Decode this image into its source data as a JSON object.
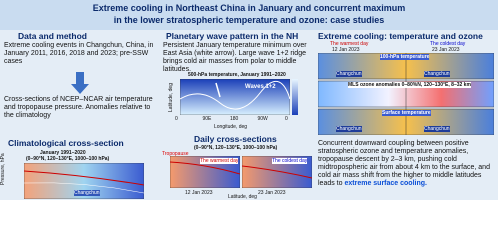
{
  "title": {
    "line1": "Extreme cooling in Northeast China in January and concurrent maximum",
    "line2": "in the lower stratospheric temperature and ozone: case studies"
  },
  "left": {
    "heading": "Data and method",
    "events": "Extreme cooling events in Changchun, China, in January 2011, 2016, 2018 and 2023; pre-SSW cases",
    "method": "Cross-sections of NCEP–NCAR air temperature and tropopause pressure. Anomalies relative to the climatology",
    "clim_heading": "Climatological cross-section",
    "clim_sub1": "January 1991–2020",
    "clim_sub2": "(0–90°N, 120–130°E, 1000–100 hPa)",
    "clim_ylabel": "Pressure, hPa",
    "clim_city": "Changchun"
  },
  "middle": {
    "heading": "Planetary wave pattern in the NH",
    "text": "Persistent January temperature minimum over East Asia (white arrow). Large wave 1+2 ridge brings cold air masses from polar to middle latitudes.",
    "map_title": "500-hPa temperature, January 1991–2020",
    "map_label": "Waves 1+2",
    "map_ylabel": "Latitude, deg",
    "map_xlabel": "Longitude, deg",
    "map_xticks": [
      "0",
      "90E",
      "180",
      "90W",
      "0"
    ],
    "daily_heading": "Daily cross-sections",
    "daily_sub": "(0–90°N, 120–130°E, 1000–100 hPa)",
    "tropopause": "Tropopause",
    "warm_label": "The warmest day",
    "cold_label": "The coldest day",
    "date1": "12 Jan 2023",
    "date2": "23 Jan 2023",
    "daily_xlabel": "Latitude, deg"
  },
  "right": {
    "heading": "Extreme cooling: temperature and ozone",
    "warm_label": "The warmest day",
    "warm_date": "12 Jan 2023",
    "cold_label": "The coldest day",
    "cold_date": "23 Jan 2023",
    "t100": "100-hPa temperature",
    "ozone": "MLS ozone anomalies 0–80%N, 120–130°E, 8–32 km",
    "surface": "Surface temperature",
    "city": "Changchun",
    "conclusion": "Concurrent downward coupling between positive stratospheric ozone and temperature anomalies, tropopause descent by 2–3 km, pushing cold midtropospheric air from about 4 km to the surface, and cold air mass shift from the higher to middle latitudes leads to",
    "conclusion_end": "extreme surface cooling."
  }
}
